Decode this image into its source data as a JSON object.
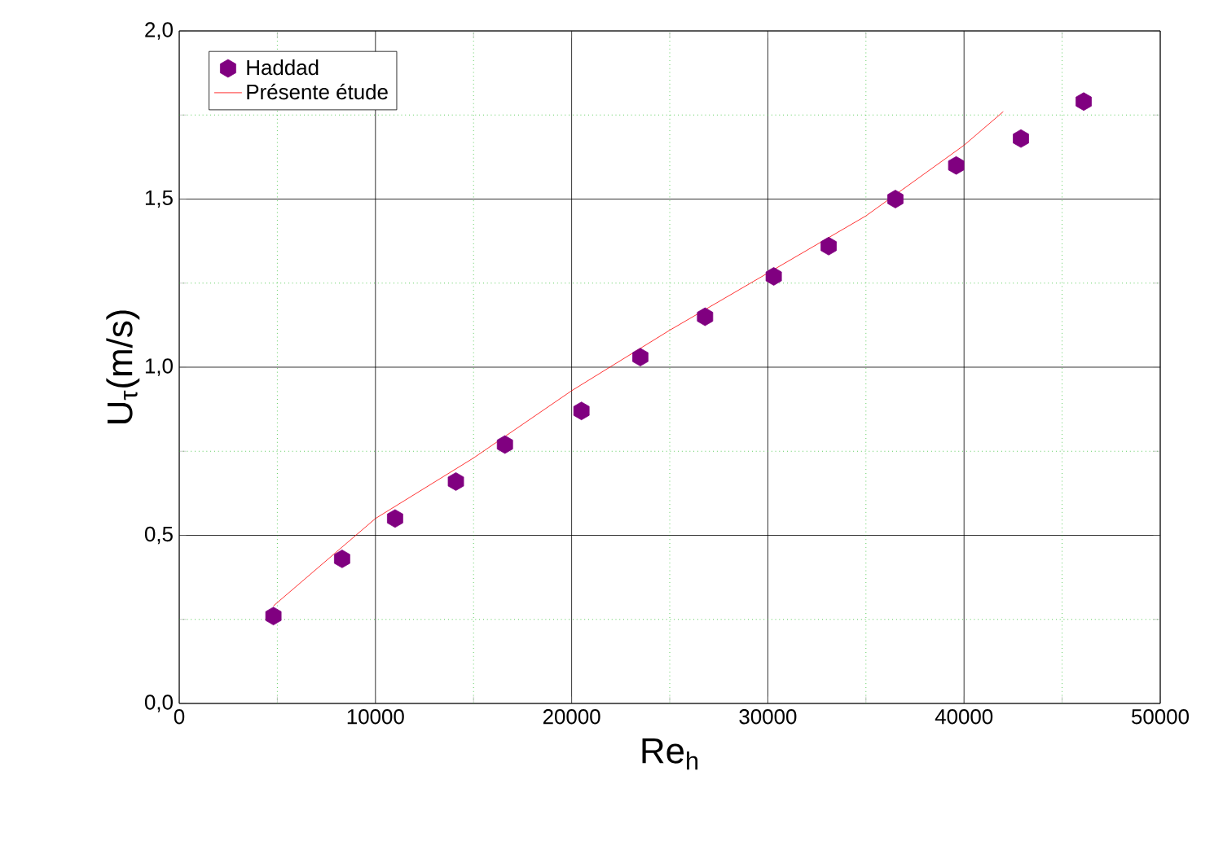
{
  "chart_data": {
    "type": "scatter",
    "xlabel": "Re$_{h}$",
    "ylabel": "U$_{τ}$(m/s)",
    "xlim": [
      0,
      50000
    ],
    "xticks": [
      0,
      {
        "value": 5000,
        "label": null
      },
      10000,
      {
        "value": 15000,
        "label": null
      },
      20000,
      {
        "value": 25000,
        "label": null
      },
      30000,
      {
        "value": 35000,
        "label": null
      },
      40000,
      {
        "value": 45000,
        "label": null
      },
      50000
    ],
    "ylim": [
      0,
      2
    ],
    "yticks": [
      {
        "value": 0,
        "label": "0,0"
      },
      {
        "value": 0.25,
        "label": null
      },
      {
        "value": 0.5,
        "label": "0,5"
      },
      {
        "value": 0.75,
        "label": null
      },
      {
        "value": 1,
        "label": "1,0"
      },
      {
        "value": 1.25,
        "label": null
      },
      {
        "value": 1.5,
        "label": "1,5"
      },
      {
        "value": 1.75,
        "label": null
      },
      {
        "value": 2,
        "label": "2,0"
      }
    ],
    "grid": true,
    "legend": "top left",
    "series": [
      {
        "name": "Haddad",
        "color": "#800080",
        "x": [
          4800,
          8300,
          11000,
          14100,
          16600,
          20500,
          23500,
          26800,
          30300,
          33100,
          36500,
          39600,
          42900,
          46100
        ],
        "values": [
          0.26,
          0.43,
          0.55,
          0.66,
          0.77,
          0.87,
          1.03,
          1.15,
          1.27,
          1.36,
          1.5,
          1.6,
          1.68,
          1.79
        ]
      },
      {
        "name": "Présente étude",
        "type": "line",
        "color": "#ff0000",
        "x": [
          4800,
          10000,
          15000,
          20000,
          25000,
          30000,
          35000,
          40000,
          42000
        ],
        "values": [
          0.29,
          0.55,
          0.73,
          0.93,
          1.11,
          1.28,
          1.45,
          1.66,
          1.76
        ]
      }
    ]
  }
}
